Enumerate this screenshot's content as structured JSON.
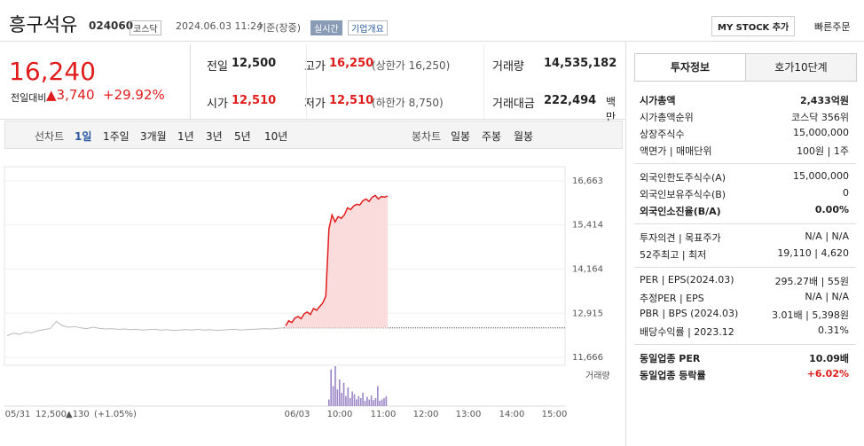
{
  "header": {
    "name": "흥구석유",
    "code": "024060",
    "market": "코스닥",
    "datetime": "2024.06.03 11:24",
    "basis": "기준(장중)",
    "realtime": "실시간",
    "company": "기업개요",
    "mystock": "MY STOCK 추가",
    "quick": "빠른주문"
  },
  "price": {
    "current": "16,240",
    "change_label": "전일대비",
    "change": "3,740",
    "change_pct": "+29.92%"
  },
  "summary": [
    {
      "label": "전일",
      "value": "12,500"
    },
    {
      "label": "고가",
      "value": "16,250",
      "note": "(상한가 16,250)"
    },
    {
      "label": "거래량",
      "value": "14,535,182"
    },
    {
      "label": "시가",
      "value": "12,510"
    },
    {
      "label": "저가",
      "value": "12,510",
      "note": "(하한가 8,750)"
    },
    {
      "label": "거래대금",
      "value": "222,494",
      "unit": "백만"
    }
  ],
  "tabs": {
    "line_label": "선차트",
    "line": [
      "1일",
      "1주일",
      "3개월",
      "1년",
      "3년",
      "5년",
      "10년"
    ],
    "candle_label": "봉차트",
    "candle": [
      "일봉",
      "주봉",
      "월봉"
    ]
  },
  "chart": {
    "ylim": [
      11440,
      17065
    ],
    "yticks": [
      {
        "value": 16663,
        "label": "16,663"
      },
      {
        "value": 15414,
        "label": "15,414"
      },
      {
        "value": 14164,
        "label": "14,164"
      },
      {
        "value": 12915,
        "label": "12,915"
      },
      {
        "value": 11666,
        "label": "11,666"
      }
    ],
    "reference": 12500,
    "prev": [
      12280,
      12350,
      12320,
      12380,
      12360,
      12420,
      12450,
      12480,
      12680,
      12560,
      12520,
      12540,
      12500,
      12480,
      12520,
      12490,
      12470,
      12480,
      12460,
      12470,
      12450,
      12460,
      12440,
      12450,
      12460,
      12440,
      12450,
      12430,
      12440,
      12450,
      12440,
      12460,
      12440,
      12450,
      12430,
      12440,
      12450,
      12460,
      12440,
      12450,
      12460,
      12470,
      12480,
      12470,
      12490,
      12500
    ],
    "today": [
      12560,
      12700,
      12650,
      12780,
      12820,
      12760,
      12900,
      12950,
      12880,
      13050,
      13000,
      13100,
      13200,
      13400,
      15300,
      15700,
      15500,
      15650,
      15600,
      15700,
      15900,
      15850,
      15950,
      16000,
      15980,
      16100,
      16150,
      16080,
      16200,
      16250,
      16150,
      16220,
      16200,
      16240
    ],
    "volume": [
      10,
      55,
      30,
      60,
      25,
      40,
      20,
      35,
      15,
      28,
      12,
      22,
      18,
      10,
      15,
      12,
      20,
      8,
      14,
      10,
      16,
      9,
      12,
      30,
      8,
      10,
      12,
      15
    ],
    "volume_label": "거래량",
    "xlabels": [
      "05/31",
      "06/03",
      "10:00",
      "11:00",
      "12:00",
      "13:00",
      "14:00",
      "15:00"
    ],
    "footer": {
      "price": "12,500",
      "change": "▲130",
      "pct": "(+1.05%)"
    }
  },
  "side": {
    "tabs": [
      "투자정보",
      "호가10단계"
    ],
    "groups": [
      [
        {
          "label": "시가총액",
          "value": "2,433억원"
        },
        {
          "label": "시가총액순위",
          "value": "코스닥 356위"
        },
        {
          "label": "상장주식수",
          "value": "15,000,000"
        },
        {
          "label": "액면가 | 매매단위",
          "value": "100원 | 1주"
        }
      ],
      [
        {
          "label": "외국인한도주식수(A)",
          "value": "15,000,000"
        },
        {
          "label": "외국인보유주식수(B)",
          "value": "0"
        },
        {
          "label": "외국인소진율(B/A)",
          "value": "0.00%"
        }
      ],
      [
        {
          "label": "투자의견 | 목표주가",
          "value": "N/A | N/A"
        },
        {
          "label": "52주최고 | 최저",
          "value": "19,110 | 4,620"
        }
      ],
      [
        {
          "label": "PER | EPS(2024.03)",
          "value": "295.27배 | 55원"
        },
        {
          "label": "추정PER | EPS",
          "value": "N/A | N/A"
        },
        {
          "label": "PBR | BPS (2024.03)",
          "value": "3.01배 | 5,398원"
        },
        {
          "label": "배당수익률 | 2023.12",
          "value": "0.31%"
        }
      ],
      [
        {
          "label": "동일업종 PER",
          "value": "10.09배"
        },
        {
          "label": "동일업종 등락률",
          "value": "+6.02%"
        }
      ]
    ]
  }
}
